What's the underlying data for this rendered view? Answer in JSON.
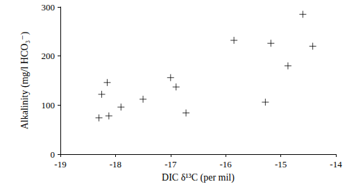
{
  "chart_data": {
    "type": "scatter",
    "x_label": "DIC δ¹³C (per mil)",
    "y_label": "Alkalinity (mg/l HCO₃⁻)",
    "x": [
      -18.3,
      -18.25,
      -18.15,
      -18.12,
      -17.9,
      -17.5,
      -17.0,
      -16.9,
      -16.72,
      -15.85,
      -15.28,
      -15.18,
      -14.87,
      -14.6,
      -14.42
    ],
    "values": [
      74,
      122,
      146,
      78,
      96,
      112,
      156,
      137,
      84,
      232,
      106,
      226,
      180,
      285,
      220
    ],
    "color": "#000000",
    "marker": "plus",
    "xlim": [
      -19,
      -14
    ],
    "xticks": [
      -19,
      -18,
      -17,
      -16,
      -15,
      -14
    ],
    "ylim": [
      0,
      300
    ],
    "yticks": [
      0,
      100,
      200,
      300
    ],
    "grid": false
  }
}
